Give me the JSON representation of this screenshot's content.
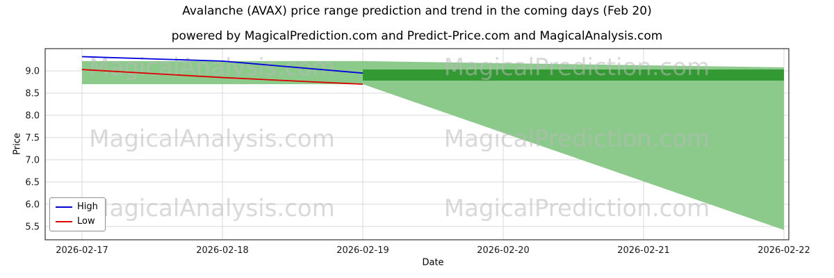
{
  "chart_data": {
    "type": "line",
    "title": "Avalanche (AVAX) price range prediction and trend in the coming days (Feb 20)",
    "subtitle": "powered by MagicalPrediction.com and Predict-Price.com and MagicalAnalysis.com",
    "xlabel": "Date",
    "ylabel": "Price",
    "x": [
      "2026-02-17",
      "2026-02-18",
      "2026-02-19",
      "2026-02-20",
      "2026-02-21",
      "2026-02-22"
    ],
    "yticks": [
      "5.5",
      "6.0",
      "6.5",
      "7.0",
      "7.5",
      "8.0",
      "8.5",
      "9.0"
    ],
    "ylim": [
      5.2,
      9.5
    ],
    "grid": true,
    "legend_position": "lower left",
    "colors": {
      "high_line": "#0000dd",
      "low_line": "#dd0000",
      "range_band": "#8cca8c",
      "core_band": "#339933",
      "gridline": "#d9d9d9",
      "watermark": "#b9b9b9"
    },
    "series": [
      {
        "name": "High",
        "color": "#0000dd",
        "dates": [
          "2026-02-17",
          "2026-02-18",
          "2026-02-19"
        ],
        "values": [
          9.32,
          9.22,
          8.95
        ]
      },
      {
        "name": "Low",
        "color": "#dd0000",
        "dates": [
          "2026-02-17",
          "2026-02-18",
          "2026-02-19"
        ],
        "values": [
          9.03,
          8.85,
          8.7
        ]
      }
    ],
    "bands": [
      {
        "name": "history-range",
        "color": "#8cca8c",
        "dates": [
          "2026-02-17",
          "2026-02-19"
        ],
        "upper": [
          9.22,
          9.22
        ],
        "lower": [
          8.7,
          8.7
        ]
      },
      {
        "name": "forecast-range",
        "color": "#8cca8c",
        "dates": [
          "2026-02-19",
          "2026-02-22"
        ],
        "upper": [
          9.22,
          9.08
        ],
        "lower": [
          8.7,
          5.42
        ]
      },
      {
        "name": "forecast-core-range",
        "color": "#339933",
        "dates": [
          "2026-02-19",
          "2026-02-22"
        ],
        "upper": [
          9.03,
          9.03
        ],
        "lower": [
          8.78,
          8.78
        ]
      }
    ],
    "watermarks": [
      "MagicalAnalysis.com",
      "MagicalPrediction.com"
    ]
  }
}
